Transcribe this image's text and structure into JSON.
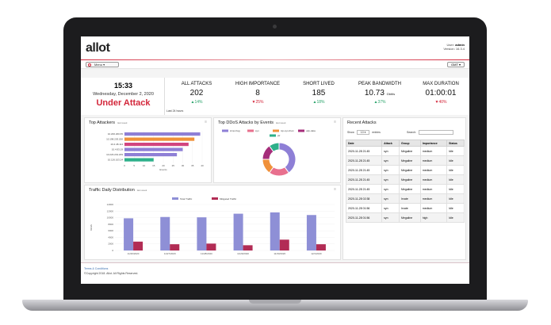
{
  "header": {
    "logo": "allot",
    "user_label": "User:",
    "user_name": "admin",
    "version": "Version: 16.3.4"
  },
  "menubar": {
    "menu_label": "Menu",
    "timezone": "GMT"
  },
  "clock": {
    "time": "15:33",
    "date": "Wednesday, December 2, 2020",
    "status": "Under Attack",
    "range": "Last 24 hours"
  },
  "stats": [
    {
      "label": "ALL ATTACKS",
      "value": "202",
      "unit": "",
      "change": "14%",
      "direction": "up"
    },
    {
      "label": "HIGH IMPORTANCE",
      "value": "8",
      "unit": "",
      "change": "25%",
      "direction": "down"
    },
    {
      "label": "SHORT LIVED",
      "value": "185",
      "unit": "",
      "change": "18%",
      "direction": "up"
    },
    {
      "label": "PEAK BANDWIDTH",
      "value": "10.73",
      "unit": "Gbit/s",
      "change": "37%",
      "direction": "up"
    },
    {
      "label": "MAX DURATION",
      "value": "01:00:01",
      "unit": "",
      "change": "40%",
      "direction": "down"
    }
  ],
  "panels": {
    "attackers": {
      "title": "Top Attackers",
      "sub": "last week",
      "xlabel": "Events"
    },
    "ddos": {
      "title": "Top DDoS Attacks by Events",
      "sub": "last week"
    },
    "traffic": {
      "title": "Traffic Daily Distribution",
      "sub": "last week",
      "ylabel": "Gbit/s"
    },
    "recent": {
      "title": "Recent Attacks",
      "show_label": "Show",
      "show_value": "10",
      "entries_label": "entries",
      "search_label": "Search:"
    }
  },
  "chart_data": [
    {
      "type": "bar",
      "orientation": "horizontal",
      "title": "Top Attackers",
      "categories": [
        "10.200.200.65",
        "10.198.203.200",
        "10.4.48.114",
        "10.4.93.19",
        "10.223.219.209",
        "10.126.103.24"
      ],
      "series": [
        {
          "values": [
            39,
            36,
            33,
            30,
            27,
            15
          ]
        }
      ],
      "colors": [
        "#8e7fd6",
        "#f0913a",
        "#d2457f",
        "#8e7fd6",
        "#8e7fd6",
        "#2db08a"
      ],
      "xlabel": "Events",
      "xticks": [
        0,
        5,
        10,
        15,
        20,
        25,
        30,
        35,
        40
      ],
      "xlim": [
        0,
        40
      ]
    },
    {
      "type": "pie",
      "title": "Top DDoS Attacks by Events",
      "labels": [
        "icmp-frag",
        "syn",
        "tcp-syn-frust",
        "udp-data",
        "ptr"
      ],
      "values": [
        40,
        20,
        15,
        15,
        10
      ],
      "colors": [
        "#8e7fd6",
        "#e8708e",
        "#f0913a",
        "#a52d7a",
        "#2db08a"
      ]
    },
    {
      "type": "bar",
      "title": "Traffic Daily Distribution",
      "categories": [
        "11/26/2020",
        "11/27/2020",
        "11/28/2020",
        "11/29/2020",
        "11/30/2020",
        "12/1/2020"
      ],
      "series": [
        {
          "name": "Total Traffic",
          "values": [
            9800,
            10200,
            10100,
            11200,
            11600,
            10800
          ],
          "color": "#8e8fd6"
        },
        {
          "name": "Mitigated Traffic",
          "values": [
            2700,
            1900,
            2100,
            1600,
            3300,
            1900
          ],
          "color": "#b22c55"
        }
      ],
      "ylabel": "Gbit/s",
      "yticks": [
        0,
        2000,
        4000,
        6000,
        8000,
        10000,
        12000,
        14000
      ],
      "ylim": [
        0,
        14000
      ]
    }
  ],
  "recent_attacks": {
    "columns": [
      "Date",
      "Attack",
      "Group",
      "Importance",
      "Status"
    ],
    "rows": [
      [
        "2020-11-28 21:45",
        "syn",
        "Megaline",
        "medium",
        "Idle"
      ],
      [
        "2020-11-28 21:45",
        "syn",
        "Megaline",
        "medium",
        "Idle"
      ],
      [
        "2020-11-28 21:45",
        "syn",
        "Megaline",
        "medium",
        "Idle"
      ],
      [
        "2020-11-28 21:45",
        "syn",
        "Megaline",
        "medium",
        "Idle"
      ],
      [
        "2020-11-28 21:45",
        "syn",
        "Megaline",
        "medium",
        "Idle"
      ],
      [
        "2020-11-28 02:38",
        "syn",
        "Irvate",
        "medium",
        "Idle"
      ],
      [
        "2020-11-28 01:56",
        "syn",
        "Irvate",
        "medium",
        "Idle"
      ],
      [
        "2020-11-28 01:56",
        "syn",
        "Megaline",
        "high",
        "Idle"
      ]
    ]
  },
  "footer": {
    "terms": "Terms & Conditions",
    "copyright": "©Copyright 2018. Allot. All Rights Reserved."
  }
}
